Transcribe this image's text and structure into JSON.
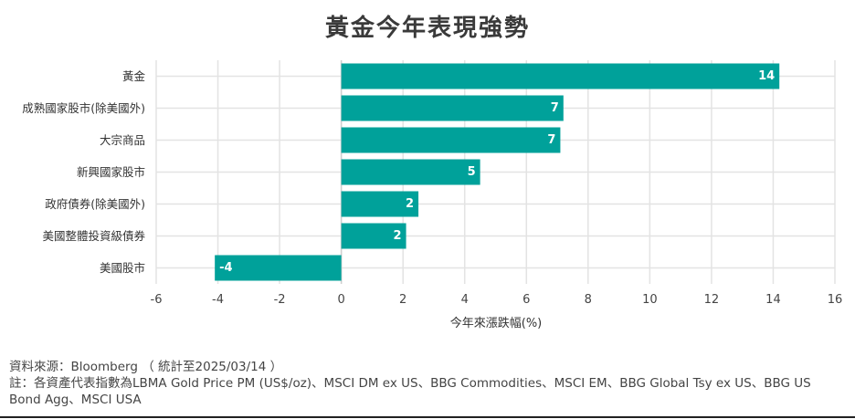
{
  "chart_data": {
    "type": "bar",
    "orientation": "horizontal",
    "title": "黃金今年表現強勢",
    "categories": [
      "黃金",
      "成熟國家股市(除美國外)",
      "大宗商品",
      "新興國家股市",
      "政府債券(除美國外)",
      "美國整體投資級債券",
      "美國股市"
    ],
    "values": [
      14.2,
      7.2,
      7.1,
      4.5,
      2.5,
      2.1,
      -4.1
    ],
    "value_labels": [
      "14",
      "7",
      "7",
      "5",
      "2",
      "2",
      "-4"
    ],
    "xlabel": "今年來漲跌幅(%)",
    "ylabel": "",
    "xlim": [
      -6,
      16
    ],
    "xticks": [
      "-6",
      "-4",
      "-2",
      "0",
      "2",
      "4",
      "6",
      "8",
      "10",
      "12",
      "14",
      "16"
    ],
    "grid": true,
    "legend": "none",
    "bar_color": "#00A19A"
  },
  "footnotes": {
    "source": "資料來源：Bloomberg （ 統計至2025/03/14 ）",
    "note": "註：各資產代表指數為LBMA Gold Price PM (US$/oz)、MSCI DM ex US、BBG Commodities、MSCI EM、BBG Global Tsy ex US、BBG US Bond Agg、MSCI USA"
  }
}
